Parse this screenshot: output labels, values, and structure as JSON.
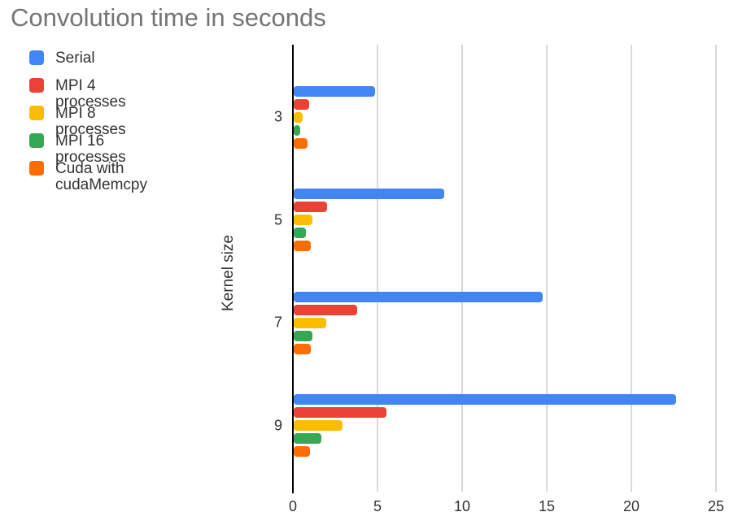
{
  "title": "Convolution time in seconds",
  "chart_data": {
    "type": "bar",
    "orientation": "horizontal",
    "title": "Convolution time in seconds",
    "xlabel": "",
    "ylabel": "Kernel size",
    "categories": [
      "3",
      "5",
      "7",
      "9"
    ],
    "series": [
      {
        "name": "Serial",
        "color": "#4285F4",
        "values": [
          4.8,
          8.9,
          14.7,
          22.6
        ]
      },
      {
        "name": "MPI 4 processes",
        "color": "#EA4335",
        "values": [
          0.9,
          1.95,
          3.75,
          5.5
        ]
      },
      {
        "name": "MPI 8 processes",
        "color": "#FBBC04",
        "values": [
          0.55,
          1.1,
          1.9,
          2.9
        ]
      },
      {
        "name": "MPI 16 processes",
        "color": "#34A853",
        "values": [
          0.4,
          0.7,
          1.1,
          1.65
        ]
      },
      {
        "name": "Cuda with cudaMemcpy",
        "color": "#FF6D01",
        "values": [
          0.8,
          1.0,
          1.0,
          0.95
        ]
      }
    ],
    "x_ticks": [
      0,
      5,
      10,
      15,
      20,
      25
    ],
    "xlim": [
      0,
      25
    ],
    "grid": true,
    "legend_position": "top-left",
    "colors": {
      "background": "#ffffff",
      "title_text": "#757575",
      "axis_line": "#000000",
      "gridline": "#d9d9d9",
      "label_text": "#333333"
    }
  }
}
